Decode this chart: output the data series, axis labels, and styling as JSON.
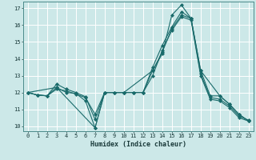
{
  "xlabel": "Humidex (Indice chaleur)",
  "ylabel": "",
  "xlim": [
    -0.5,
    23.5
  ],
  "ylim": [
    9.7,
    17.4
  ],
  "yticks": [
    10,
    11,
    12,
    13,
    14,
    15,
    16,
    17
  ],
  "xticks": [
    0,
    1,
    2,
    3,
    4,
    5,
    6,
    7,
    8,
    9,
    10,
    11,
    12,
    13,
    14,
    15,
    16,
    17,
    18,
    19,
    20,
    21,
    22,
    23
  ],
  "background_color": "#cce8e8",
  "grid_color": "#b0d8d8",
  "line_color": "#1a6b6b",
  "series": [
    {
      "x": [
        0,
        1,
        2,
        3,
        4,
        5,
        6,
        7,
        8,
        9,
        10,
        11,
        12,
        13,
        14,
        15,
        16,
        17,
        18,
        19,
        20,
        21,
        22,
        23
      ],
      "y": [
        12.0,
        11.85,
        11.8,
        12.3,
        12.0,
        11.95,
        11.5,
        9.9,
        12.0,
        12.0,
        12.0,
        12.0,
        12.0,
        13.3,
        14.4,
        15.8,
        16.6,
        16.4,
        13.3,
        11.8,
        11.8,
        11.3,
        10.7,
        10.3
      ]
    },
    {
      "x": [
        0,
        1,
        2,
        3,
        4,
        5,
        6,
        7,
        8,
        9,
        10,
        11,
        12,
        13,
        14,
        15,
        16,
        17,
        18,
        19,
        20,
        21,
        22,
        23
      ],
      "y": [
        12.0,
        11.85,
        11.8,
        12.5,
        12.2,
        12.0,
        11.75,
        10.4,
        12.0,
        12.0,
        12.0,
        12.0,
        12.0,
        13.5,
        14.8,
        15.9,
        16.8,
        16.4,
        13.1,
        11.7,
        11.6,
        11.2,
        10.6,
        10.35
      ]
    },
    {
      "x": [
        0,
        1,
        2,
        3,
        4,
        5,
        6,
        7,
        8,
        9,
        10,
        11,
        12,
        13,
        14,
        15,
        16,
        17,
        18,
        19,
        20,
        21,
        22,
        23
      ],
      "y": [
        12.0,
        11.85,
        11.8,
        12.2,
        12.1,
        11.9,
        11.7,
        10.7,
        12.0,
        12.0,
        12.0,
        12.0,
        12.0,
        13.0,
        14.5,
        15.7,
        16.5,
        16.3,
        13.0,
        11.6,
        11.5,
        11.1,
        10.5,
        10.3
      ]
    },
    {
      "x": [
        0,
        3,
        7,
        8,
        10,
        13,
        14,
        15,
        16,
        17,
        18,
        20,
        21,
        22,
        23
      ],
      "y": [
        12.0,
        12.3,
        9.9,
        12.0,
        12.0,
        13.3,
        14.3,
        16.6,
        17.2,
        16.4,
        13.3,
        11.8,
        11.3,
        10.7,
        10.3
      ]
    }
  ]
}
